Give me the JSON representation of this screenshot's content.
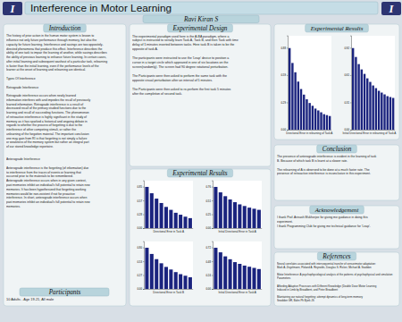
{
  "title": "Interference in Motor Learning",
  "author": "Ravi Kiran S",
  "logo": "I",
  "sections": [
    {
      "heading": "Introduction",
      "body": "The history of prior action in the human motor system is known to\ninfluence not only future performance through memory, but also the\ncapacity for future learning. Interference and savings are two oppositely-\ndirected phenomena that produce this effect. Interference describes the\nability of one task to impair the learning of another, while savings describes\nthe ability of previous learning to enhance future learning. In certain cases,\nafter initial learning and subsequent washout of a particular task, relearning\nis faster than the initial learning, even if the performance levels of the\nlearner at the onset of learning and relearning are identical.\n\nTypes Of Interference\n\nRetrograde Interference\n\nRetrograde interference occurs when newly learned\ninformation interferes with and impedes the recall of previously\nlearned information. Retrograde interference is a result of\ndecreased recall of the primary studied functions due to the\nlearning and recall of succeeding functions. The phenomenon\nof retroactive interference is highly significant in the study of\nmemory as it has sparked a historical and ongoing debate in\nregards to whether the process of forgetting is due to the\ninterference of other competing stimuli, or rather the\nunlearning of the forgotten material. The important conclusion\none may gain from RI is that forgetting is not simply a failure\nor weakness of the memory system but rather an integral part\nof our stored knowledge repertoire.\n\n\nAnterograde Interference\n\nAnterograde interference is the forgetting (of information) due\nto interference from the traces of events or learning that\noccurred prior to the materials to be remembered.\nAnterograde interference occurs when in any given context,\npast memories inhibit an individual's full potential to retain new\nmemories. It has been hypothesized that forgetting working\nmemories would be non-existent if not for proactive\ninterference. In short, anterograde interference occurs when\npast memories inhibit an individual's full potential to retain new\nmemories."
    },
    {
      "heading": "Participants",
      "body": "10 Adults - Age 19-21, All male"
    },
    {
      "heading": "Experimental Design",
      "body": "The experimental paradigm used here is the A-BA paradigm, where a\nsubject is instructed to serially learn Task A, Task B, and then Task with time\ndelay of 5 minutes inserted between tasks. Here task B is taken to be the\nopposite of task A.\n\nThe participants were instructed to use the 'Leap' device to position a\ncursor in a target circle which appeared in one of six locations on the\nscreen(randomly). The screen had 90 degree rotational perturbation.\n\nThe Participants were then asked to perform the same task with the\nopposite visual perturbation after an interval of 5 minutes.\n\nThe Participants were then asked to re-perform the first task 5 minutes\nafter the completion of second task."
    },
    {
      "heading": "Experimental Results"
    },
    {
      "heading": "Experimental Results"
    },
    {
      "heading": "Conclusion",
      "body": "The presence of anterograde interference is evident in the learning of task\nB. Because of which task B is learnt at a slower rate.\n\nThe relearning of A is observed to be done at a much faster rate. The\npresence of retroactive interference is inconclusive in this experiment."
    },
    {
      "heading": "Acknowledgement",
      "body": "I thank Prof. Arinash Mukherjee for giving me guidance in doing this\nexperiment.\nI thank Programming Club for giving me technical guidance for 'Leap'."
    },
    {
      "heading": "References",
      "body": "Neural correlates associated with intersequential transfer of sensorimotor adaptation:\nMark A. Zngelmann, Floland A. Reynolds, Douglas S. Ricker, Michael A. Staddon\n\nMotor Interference: A psychophysiological analysis of the patterns of psychophysical and simulation\nParameters\n\nAffording Adaptive Processes with Different Knowledge (Double Dose Motor Learning\nInduced in Limb by Broadbent, and Peter Broadbent\n\nMaintaining our natural forgetting: attempt dynamics of long-term memory\nSnoddon GR, Bahn Ph Bjork JS"
    }
  ],
  "chart_data": [
    {
      "type": "bar",
      "xlabel": "Directional Error in Task A",
      "color": "#1a237e",
      "categories": [
        null,
        null,
        null,
        null,
        null,
        null,
        null,
        null,
        null,
        null
      ],
      "values": [
        0.85,
        0.72,
        0.61,
        0.52,
        0.44,
        0.38,
        0.32,
        0.28,
        0.24,
        0.21
      ],
      "ylim": [
        0,
        0.9775
      ],
      "yticks": [
        {
          "value": 0,
          "label": "0.00"
        },
        {
          "value": 0.2833333333333333,
          "label": "0.28"
        },
        {
          "value": 0.5666666666666667,
          "label": "0.57"
        },
        0.85
      ],
      "grid": false,
      "tick_labels": "y"
    },
    {
      "type": "bar",
      "xlabel": "Initial Directional Error in Task A",
      "color": "#1a237e",
      "categories": [
        null,
        null,
        null,
        null,
        null,
        null,
        null,
        null,
        null,
        null
      ],
      "values": [
        0.76,
        0.66,
        0.59,
        0.53,
        0.48,
        0.44,
        0.41,
        0.38,
        0.36,
        0.34
      ],
      "ylim": [
        0,
        0.874
      ],
      "yticks": [
        {
          "value": 0,
          "label": "0.00"
        },
        {
          "value": 0.25333333333333335,
          "label": "0.25"
        },
        {
          "value": 0.5066666666666667,
          "label": "0.51"
        },
        0.76
      ],
      "grid": false,
      "tick_labels": "y"
    },
    {
      "type": "bar",
      "xlabel": "Directional Error in Task B",
      "color": "#1a237e",
      "categories": [
        null,
        null,
        null,
        null,
        null,
        null,
        null,
        null,
        null,
        null
      ],
      "values": [
        0.8,
        0.68,
        0.58,
        0.5,
        0.43,
        0.38,
        0.33,
        0.29,
        0.26,
        0.23
      ],
      "ylim": [
        0,
        0.92
      ],
      "yticks": [
        {
          "value": 0,
          "label": "0.00"
        },
        {
          "value": 0.26666666666666666,
          "label": "0.27"
        },
        {
          "value": 0.5333333333333333,
          "label": "0.53"
        },
        {
          "value": 0.8,
          "label": "0.80"
        }
      ],
      "grid": false,
      "tick_labels": "y"
    },
    {
      "type": "bar",
      "xlabel": "Initial Directional Error in Task A",
      "color": "#1a237e",
      "categories": [
        null,
        null,
        null,
        null,
        null,
        null,
        null,
        null,
        null,
        null
      ],
      "values": [
        0.72,
        0.64,
        0.57,
        0.52,
        0.47,
        0.44,
        0.41,
        0.39,
        0.37,
        0.35
      ],
      "ylim": [
        0,
        0.828
      ],
      "yticks": [
        {
          "value": 0,
          "label": "0.00"
        },
        0.24,
        0.48,
        0.72
      ],
      "grid": false,
      "tick_labels": "y"
    },
    {
      "type": "bar",
      "xlabel": "Directional Error in relearning of Task A",
      "color": "#1a237e",
      "categories": [
        null,
        null,
        null,
        null,
        null,
        null,
        null,
        null,
        null,
        null,
        null,
        null,
        null,
        null,
        null
      ],
      "values": [
        0.88,
        0.72,
        0.62,
        0.52,
        0.44,
        0.38,
        0.33,
        0.29,
        0.26,
        0.23,
        0.21,
        0.19,
        0.17,
        0.16,
        0.15
      ],
      "ylim": [
        0,
        1.012
      ],
      "yticks": [
        {
          "value": 0,
          "label": "0.00"
        },
        {
          "value": 0.29333333333333333,
          "label": "0.29"
        },
        {
          "value": 0.5866666666666667,
          "label": "0.59"
        },
        0.88
      ],
      "grid": false,
      "tick_labels": "y"
    },
    {
      "type": "bar",
      "xlabel": "Initial Directional Error in relearning of Task A",
      "color": "#1a237e",
      "categories": [
        null,
        null,
        null,
        null,
        null,
        null,
        null,
        null,
        null,
        null,
        null,
        null,
        null,
        null,
        null
      ],
      "values": [
        0.92,
        0.82,
        0.74,
        0.68,
        0.63,
        0.58,
        0.54,
        0.5,
        0.47,
        0.44,
        0.42,
        0.4,
        0.38,
        0.37,
        0.36
      ],
      "ylim": [
        0,
        1.058
      ],
      "yticks": [
        {
          "value": 0,
          "label": "0.00"
        },
        {
          "value": 0.30666666666666664,
          "label": "0.31"
        },
        {
          "value": 0.6133333333333333,
          "label": "0.61"
        },
        0.92
      ],
      "grid": false,
      "tick_labels": "y"
    }
  ]
}
